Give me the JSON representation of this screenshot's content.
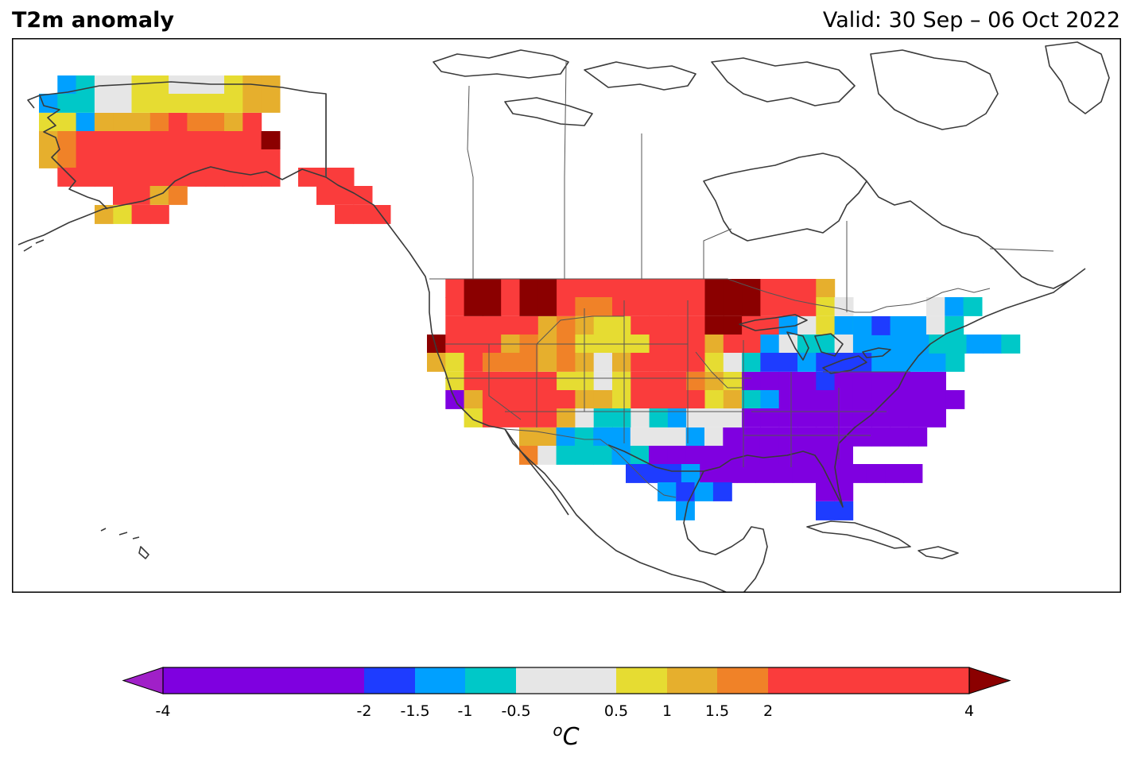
{
  "header": {
    "title": "T2m anomaly",
    "valid": "Valid: 30 Sep – 06 Oct 2022"
  },
  "colorbar": {
    "unit_sup": "o",
    "unit_main": "C",
    "bins": [
      {
        "from": -4,
        "to": -2,
        "color": "#7f00e0"
      },
      {
        "from": -2,
        "to": -1.5,
        "color": "#1e3cff"
      },
      {
        "from": -1.5,
        "to": -1,
        "color": "#00a0ff"
      },
      {
        "from": -1,
        "to": -0.5,
        "color": "#00c8c8"
      },
      {
        "from": -0.5,
        "to": 0.5,
        "color": "#e6e6e6"
      },
      {
        "from": 0.5,
        "to": 1,
        "color": "#e6dc32"
      },
      {
        "from": 1,
        "to": 1.5,
        "color": "#e6af2d"
      },
      {
        "from": 1.5,
        "to": 2,
        "color": "#f08228"
      },
      {
        "from": 2,
        "to": 4,
        "color": "#fa3c3c"
      }
    ],
    "under_color": "#a020c8",
    "over_color": "#8b0000",
    "ticks": [
      "-4",
      "-2",
      "-1.5",
      "-1",
      "-0.5",
      "0.5",
      "1",
      "1.5",
      "2",
      "4"
    ]
  }
}
